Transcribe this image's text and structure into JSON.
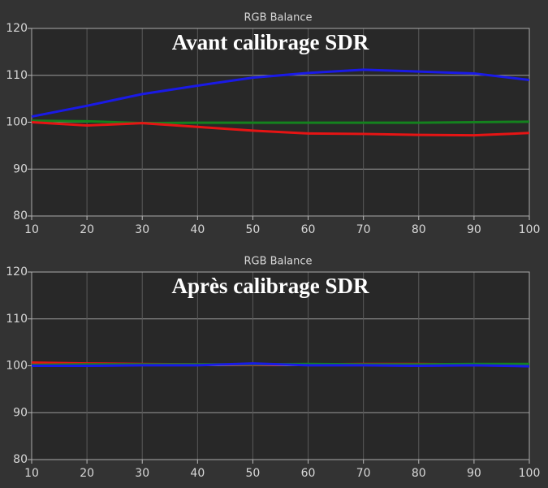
{
  "chart_data": [
    {
      "type": "line",
      "title": "RGB Balance",
      "annotation": "Avant calibrage SDR",
      "x": [
        10,
        20,
        30,
        40,
        50,
        60,
        70,
        80,
        90,
        100
      ],
      "series": [
        {
          "color": "#1a1ae6",
          "values": [
            101.2,
            103.5,
            106,
            107.8,
            109.5,
            110.5,
            111.2,
            110.8,
            110.4,
            109
          ]
        },
        {
          "color": "#14821e",
          "values": [
            100.3,
            100.2,
            99.8,
            99.9,
            99.9,
            99.9,
            99.9,
            99.9,
            100,
            100.1
          ]
        },
        {
          "color": "#e61414",
          "values": [
            100,
            99.3,
            99.8,
            99,
            98.2,
            97.6,
            97.5,
            97.3,
            97.2,
            97.7
          ]
        }
      ],
      "xlim": [
        10,
        100
      ],
      "ylim": [
        80,
        120
      ],
      "xticks": [
        10,
        20,
        30,
        40,
        50,
        60,
        70,
        80,
        90,
        100
      ],
      "yticks": [
        80,
        90,
        100,
        110,
        120
      ],
      "grid": true
    },
    {
      "type": "line",
      "title": "RGB Balance",
      "annotation": "Après calibrage SDR",
      "x": [
        10,
        20,
        30,
        40,
        50,
        60,
        70,
        80,
        90,
        100
      ],
      "series": [
        {
          "color": "#e61414",
          "values": [
            100.7,
            100.5,
            100.4,
            100.3,
            100.2,
            100.3,
            100.4,
            100.4,
            100.3,
            100.2
          ]
        },
        {
          "color": "#14821e",
          "values": [
            100.2,
            100.3,
            100.3,
            100.3,
            100.3,
            100.4,
            100.3,
            100.3,
            100.4,
            100.4
          ]
        },
        {
          "color": "#1a1ae6",
          "values": [
            100.0,
            100.0,
            100.1,
            100.1,
            100.5,
            100.1,
            100.1,
            100.0,
            100.1,
            99.9
          ]
        }
      ],
      "xlim": [
        10,
        100
      ],
      "ylim": [
        80,
        120
      ],
      "xticks": [
        10,
        20,
        30,
        40,
        50,
        60,
        70,
        80,
        90,
        100
      ],
      "yticks": [
        80,
        90,
        100,
        110,
        120
      ],
      "grid": true
    }
  ]
}
